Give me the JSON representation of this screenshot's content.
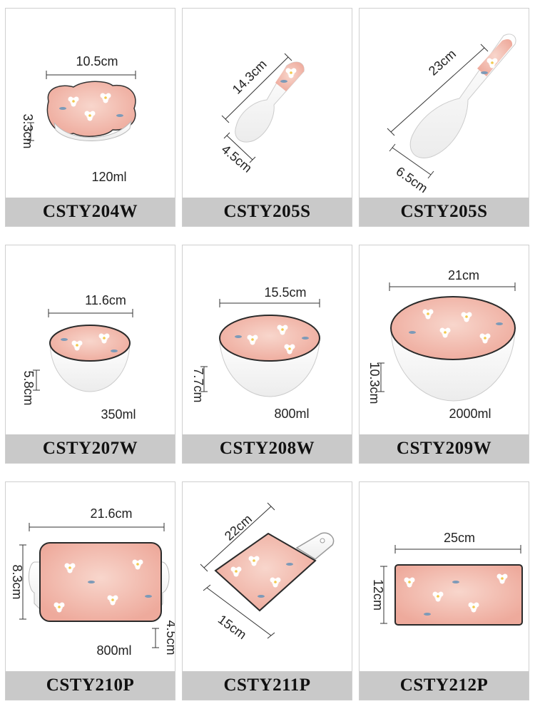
{
  "products": [
    {
      "code": "CSTY204W",
      "dims": [
        "10.5cm",
        "3.3cm"
      ],
      "volume": "120ml"
    },
    {
      "code": "CSTY205S",
      "dims": [
        "14.3cm",
        "4.5cm"
      ],
      "volume": ""
    },
    {
      "code": "CSTY205S",
      "dims": [
        "23cm",
        "6.5cm"
      ],
      "volume": ""
    },
    {
      "code": "CSTY207W",
      "dims": [
        "11.6cm",
        "5.8cm"
      ],
      "volume": "350ml"
    },
    {
      "code": "CSTY208W",
      "dims": [
        "15.5cm",
        "7.7cm"
      ],
      "volume": "800ml"
    },
    {
      "code": "CSTY209W",
      "dims": [
        "21cm",
        "10.3cm"
      ],
      "volume": "2000ml"
    },
    {
      "code": "CSTY210P",
      "dims": [
        "21.6cm",
        "8.3cm",
        "4.5cm"
      ],
      "volume": "800ml"
    },
    {
      "code": "CSTY211P",
      "dims": [
        "22cm",
        "15cm"
      ],
      "volume": ""
    },
    {
      "code": "CSTY212P",
      "dims": [
        "25cm",
        "12cm"
      ],
      "volume": ""
    }
  ],
  "colors": {
    "glaze": "#f0b9ad",
    "glaze_light": "#f6cfc4",
    "rim": "#2a2a2a",
    "caption_bg": "#c9c9c9",
    "ceramic": "#fafafa"
  }
}
